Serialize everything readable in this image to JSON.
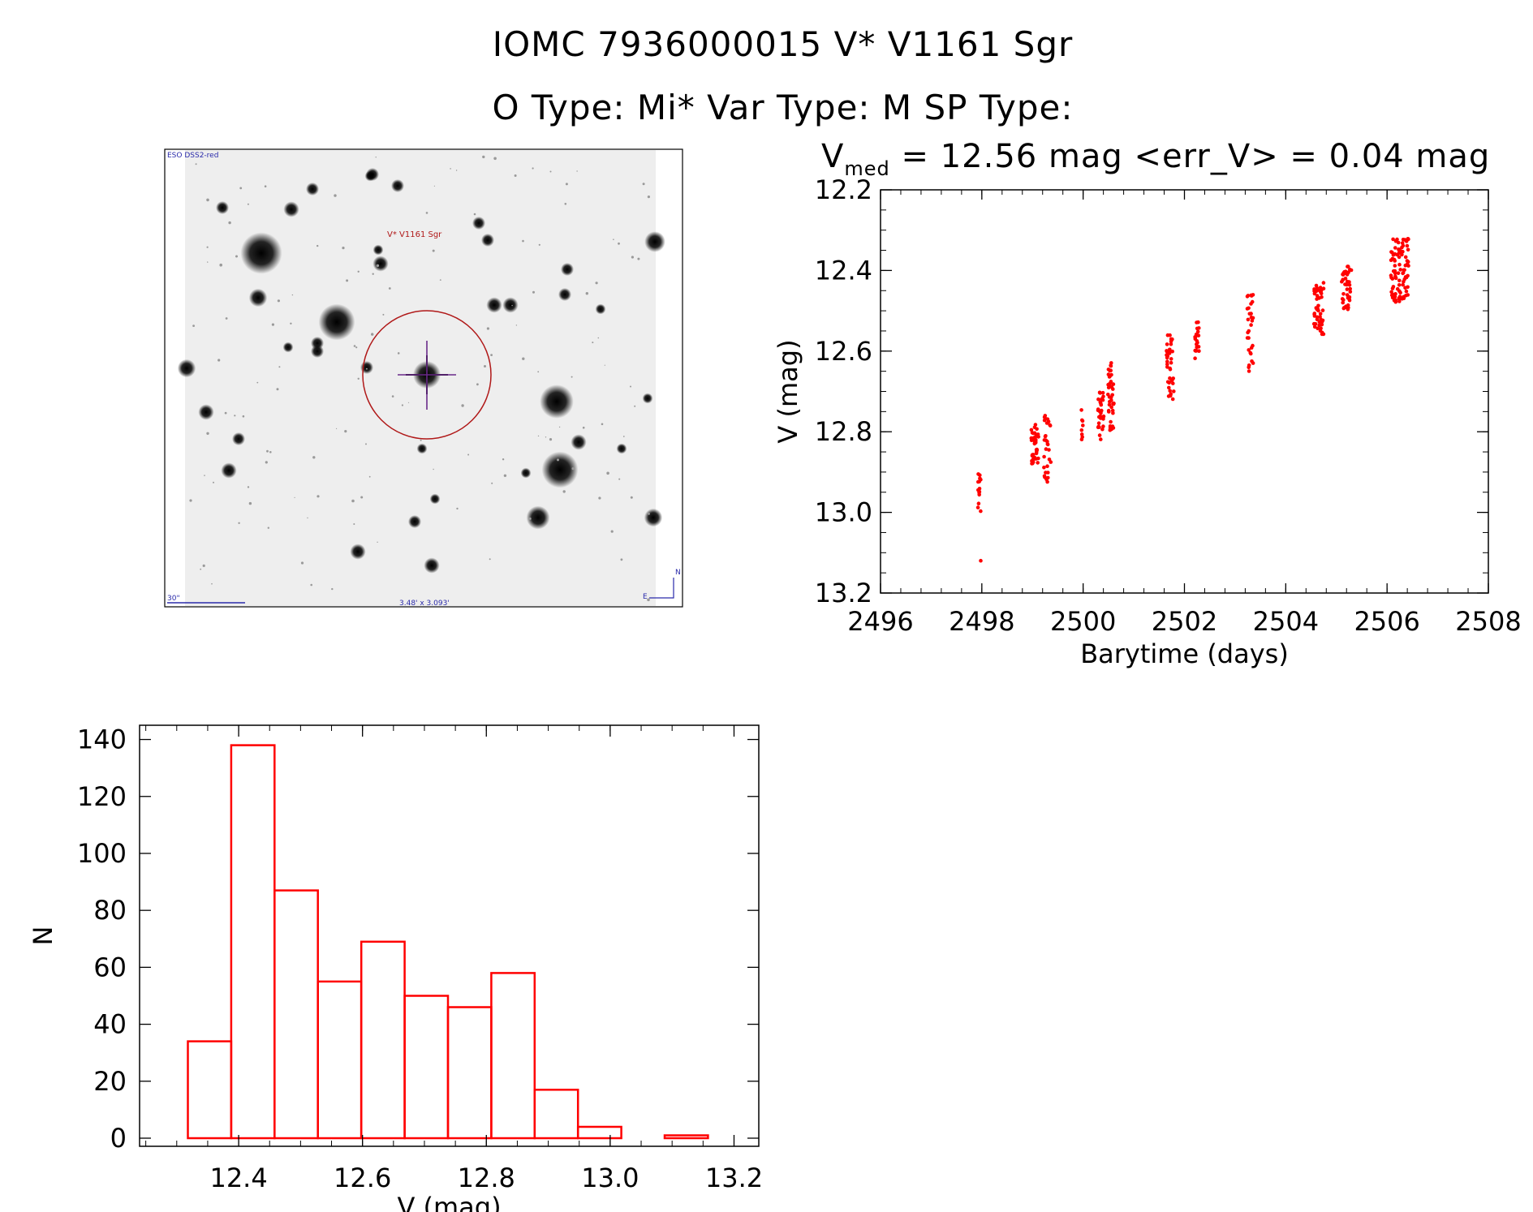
{
  "header": {
    "line1": "IOMC 7936000015   V* V1161 Sgr",
    "line2": "O Type: Mi*  Var Type: M  SP Type:",
    "stats_v": "V",
    "stats_sub": "med",
    "stats_rest": " = 12.56 mag <err_V> = 0.04 mag"
  },
  "image_panel": {
    "survey_label": "ESO DSS2-red",
    "target_label": "V* V1161 Sgr",
    "scale_label": "30\"",
    "size_label": "3.48' x 3.093'",
    "compass_n": "N",
    "compass_e": "E"
  },
  "colors": {
    "data": "#ff0000",
    "axis": "#000000",
    "finder_circle": "#b01818",
    "finder_label": "#2a2aaa"
  },
  "chart_data": [
    {
      "type": "scatter",
      "title": "",
      "xlabel": "Barytime (days)",
      "ylabel": "V (mag)",
      "xlim": [
        2496,
        2508
      ],
      "ylim": [
        13.2,
        12.2
      ],
      "xticks": [
        2496,
        2498,
        2500,
        2502,
        2504,
        2506,
        2508
      ],
      "xtick_labels": [
        "2496",
        "2498",
        "2500",
        "2502",
        "2504",
        "2506",
        "2508"
      ],
      "yticks": [
        12.2,
        12.4,
        12.6,
        12.8,
        13.0,
        13.2
      ],
      "ytick_labels": [
        "12.2",
        "12.4",
        "12.6",
        "12.8",
        "13.0",
        "13.2"
      ],
      "clusters": [
        {
          "x": 2497.95,
          "xw": 0.06,
          "ymin": 12.9,
          "ymax": 13.0,
          "n": 14
        },
        {
          "x": 2497.98,
          "xw": 0.01,
          "ymin": 13.12,
          "ymax": 13.12,
          "n": 1
        },
        {
          "x": 2499.05,
          "xw": 0.15,
          "ymin": 12.78,
          "ymax": 12.88,
          "n": 40
        },
        {
          "x": 2499.3,
          "xw": 0.15,
          "ymin": 12.76,
          "ymax": 12.93,
          "n": 30
        },
        {
          "x": 2499.97,
          "xw": 0.05,
          "ymin": 12.74,
          "ymax": 12.82,
          "n": 8
        },
        {
          "x": 2500.35,
          "xw": 0.12,
          "ymin": 12.7,
          "ymax": 12.82,
          "n": 30
        },
        {
          "x": 2500.55,
          "xw": 0.12,
          "ymin": 12.62,
          "ymax": 12.8,
          "n": 40
        },
        {
          "x": 2501.72,
          "xw": 0.15,
          "ymin": 12.56,
          "ymax": 12.72,
          "n": 40
        },
        {
          "x": 2502.25,
          "xw": 0.08,
          "ymin": 12.52,
          "ymax": 12.62,
          "n": 20
        },
        {
          "x": 2503.3,
          "xw": 0.12,
          "ymin": 12.46,
          "ymax": 12.65,
          "n": 30
        },
        {
          "x": 2504.65,
          "xw": 0.2,
          "ymin": 12.43,
          "ymax": 12.56,
          "n": 50
        },
        {
          "x": 2505.2,
          "xw": 0.2,
          "ymin": 12.39,
          "ymax": 12.5,
          "n": 40
        },
        {
          "x": 2506.25,
          "xw": 0.35,
          "ymin": 12.32,
          "ymax": 12.48,
          "n": 90
        }
      ]
    },
    {
      "type": "bar",
      "subtype": "histogram",
      "title": "",
      "xlabel": "V (mag)",
      "ylabel": "N",
      "xlim": [
        12.24,
        13.24
      ],
      "ylim": [
        0,
        145
      ],
      "xticks": [
        12.4,
        12.6,
        12.8,
        13.0,
        13.2
      ],
      "xtick_labels": [
        "12.4",
        "12.6",
        "12.8",
        "13.0",
        "13.2"
      ],
      "yticks": [
        0,
        20,
        40,
        60,
        80,
        100,
        120,
        140
      ],
      "ytick_labels": [
        "0",
        "20",
        "40",
        "60",
        "80",
        "100",
        "120",
        "140"
      ],
      "bins": [
        {
          "x0": 12.318,
          "x1": 12.388,
          "count": 34
        },
        {
          "x0": 12.388,
          "x1": 12.458,
          "count": 138
        },
        {
          "x0": 12.458,
          "x1": 12.528,
          "count": 87
        },
        {
          "x0": 12.528,
          "x1": 12.598,
          "count": 55
        },
        {
          "x0": 12.598,
          "x1": 12.668,
          "count": 69
        },
        {
          "x0": 12.668,
          "x1": 12.738,
          "count": 50
        },
        {
          "x0": 12.738,
          "x1": 12.808,
          "count": 46
        },
        {
          "x0": 12.808,
          "x1": 12.878,
          "count": 58
        },
        {
          "x0": 12.878,
          "x1": 12.948,
          "count": 17
        },
        {
          "x0": 12.948,
          "x1": 13.018,
          "count": 4
        },
        {
          "x0": 13.018,
          "x1": 13.088,
          "count": 0
        },
        {
          "x0": 13.088,
          "x1": 13.158,
          "count": 1
        }
      ]
    }
  ]
}
